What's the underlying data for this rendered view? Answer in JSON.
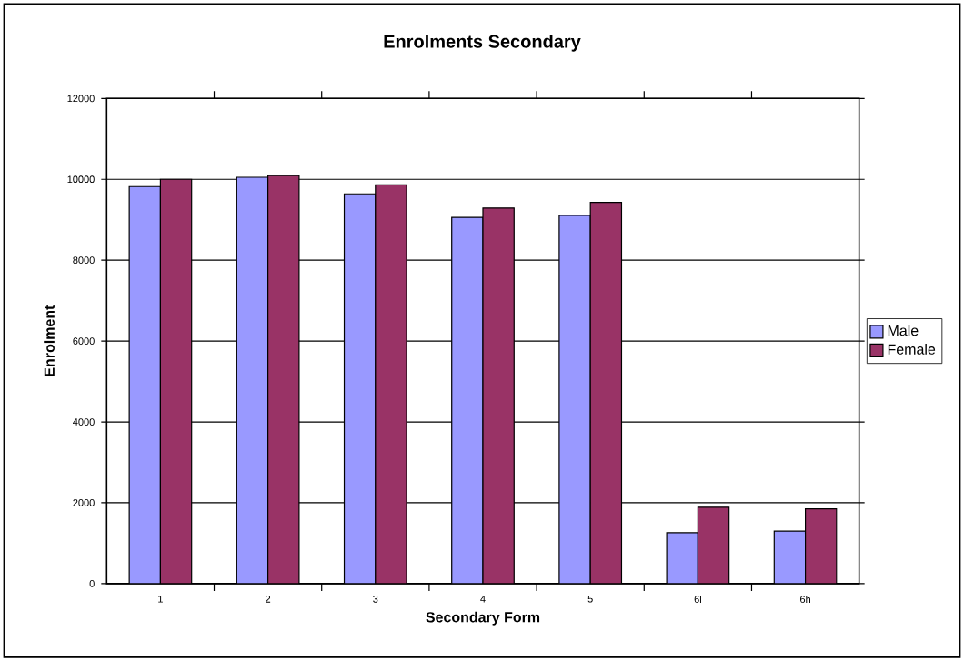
{
  "chart_data": {
    "type": "bar",
    "title": "Enrolments Secondary",
    "xlabel": "Secondary Form",
    "ylabel": "Enrolment",
    "categories": [
      "1",
      "2",
      "3",
      "4",
      "5",
      "6l",
      "6h"
    ],
    "series": [
      {
        "name": "Male",
        "color": "#9999ff",
        "values": [
          9820,
          10050,
          9640,
          9060,
          9110,
          1260,
          1300
        ]
      },
      {
        "name": "Female",
        "color": "#993366",
        "values": [
          10000,
          10090,
          9860,
          9290,
          9430,
          1890,
          1850
        ]
      }
    ],
    "ylim": [
      0,
      12000
    ],
    "yticks": [
      0,
      2000,
      4000,
      6000,
      8000,
      10000,
      12000
    ],
    "grid": "y",
    "legend": "right"
  }
}
